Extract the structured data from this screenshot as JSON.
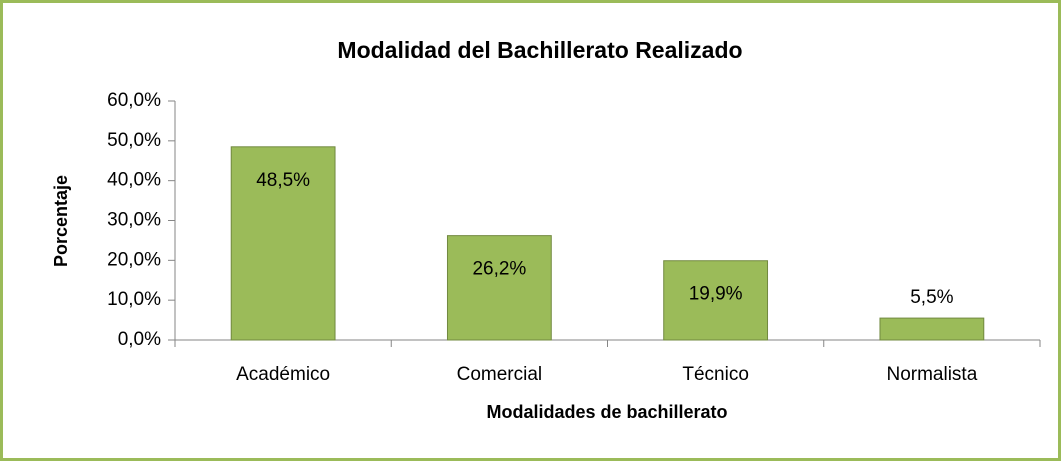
{
  "chart_data": {
    "type": "bar",
    "title": "Modalidad del Bachillerato Realizado",
    "x_label": "Modalidades de bachillerato",
    "y_label": "Porcentaje",
    "categories": [
      "Académico",
      "Comercial",
      "Técnico",
      "Normalista"
    ],
    "values": [
      48.5,
      26.2,
      19.9,
      5.5
    ],
    "value_labels": [
      "48,5%",
      "26,2%",
      "19,9%",
      "5,5%"
    ],
    "color": "#9bbb59",
    "ylim": [
      0,
      60
    ],
    "yticks": [
      {
        "value": 0,
        "label": "0,0%"
      },
      {
        "value": 10,
        "label": "10,0%"
      },
      {
        "value": 20,
        "label": "20,0%"
      },
      {
        "value": 30,
        "label": "30,0%"
      },
      {
        "value": 40,
        "label": "40,0%"
      },
      {
        "value": 50,
        "label": "50,0%"
      },
      {
        "value": 60,
        "label": "60,0%"
      }
    ],
    "grid": false
  }
}
